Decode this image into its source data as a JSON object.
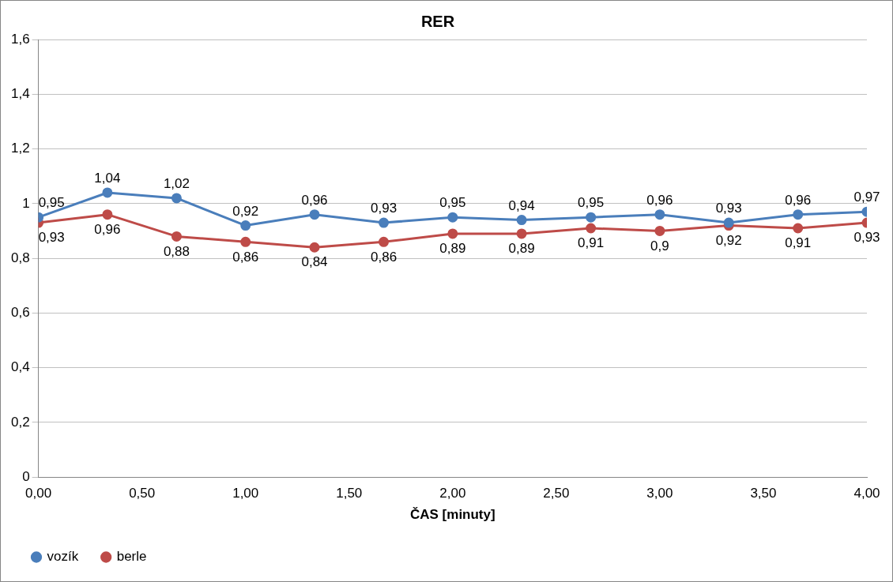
{
  "chart_data": {
    "type": "line",
    "title": "RER",
    "xlabel": "ČAS [minuty]",
    "x": [
      0,
      0.333,
      0.667,
      1,
      1.333,
      1.667,
      2,
      2.333,
      2.667,
      3,
      3.333,
      3.667,
      4
    ],
    "series": [
      {
        "name": "vozík",
        "color": "#4a7ebb",
        "values": [
          0.95,
          1.04,
          1.02,
          0.92,
          0.96,
          0.93,
          0.95,
          0.94,
          0.95,
          0.96,
          0.93,
          0.96,
          0.97
        ],
        "value_labels": [
          "0,95",
          "1,04",
          "1,02",
          "0,92",
          "0,96",
          "0,93",
          "0,95",
          "0,94",
          "0,95",
          "0,96",
          "0,93",
          "0,96",
          "0,97"
        ]
      },
      {
        "name": "berle",
        "color": "#be4b48",
        "values": [
          0.93,
          0.96,
          0.88,
          0.86,
          0.84,
          0.86,
          0.89,
          0.89,
          0.91,
          0.9,
          0.92,
          0.91,
          0.93
        ],
        "value_labels": [
          "0,93",
          "0,96",
          "0,88",
          "0,86",
          "0,84",
          "0,86",
          "0,89",
          "0,89",
          "0,91",
          "0,9",
          "0,92",
          "0,91",
          "0,93"
        ]
      }
    ],
    "xlim": [
      0,
      4
    ],
    "xticks": [
      {
        "value": 0,
        "label": "0,00"
      },
      {
        "value": 0.5,
        "label": "0,50"
      },
      {
        "value": 1,
        "label": "1,00"
      },
      {
        "value": 1.5,
        "label": "1,50"
      },
      {
        "value": 2,
        "label": "2,00"
      },
      {
        "value": 2.5,
        "label": "2,50"
      },
      {
        "value": 3,
        "label": "3,00"
      },
      {
        "value": 3.5,
        "label": "3,50"
      },
      {
        "value": 4,
        "label": "4,00"
      }
    ],
    "ylim": [
      0,
      1.6
    ],
    "yticks": [
      0,
      {
        "value": 0.2,
        "label": "0,2"
      },
      {
        "value": 0.4,
        "label": "0,4"
      },
      {
        "value": 0.6,
        "label": "0,6"
      },
      {
        "value": 0.8,
        "label": "0,8"
      },
      1,
      {
        "value": 1.2,
        "label": "1,2"
      },
      {
        "value": 1.4,
        "label": "1,4"
      },
      {
        "value": 1.6,
        "label": "1,6"
      }
    ],
    "grid": "y",
    "legend": "bottom",
    "marker": "circle",
    "line_style": "solid"
  }
}
